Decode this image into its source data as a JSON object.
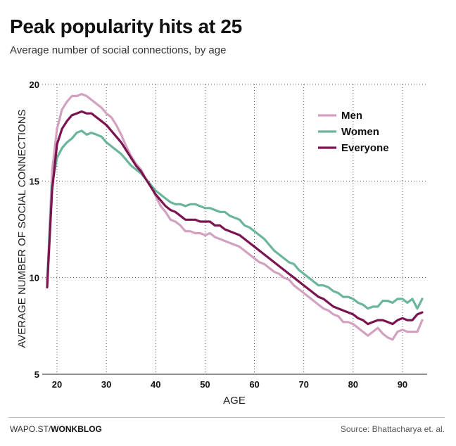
{
  "header": {
    "title": "Peak popularity hits at 25",
    "subtitle": "Average number of social connections, by age"
  },
  "footer": {
    "credit_prefix": "WAPO.ST/",
    "credit_brand": "WONKBLOG",
    "source": "Source: Bhattacharya et. al."
  },
  "chart_data": {
    "type": "line",
    "xlabel": "AGE",
    "ylabel": "AVERAGE NUMBER OF SOCIAL CONNECTIONS",
    "xlim": [
      17,
      95
    ],
    "ylim": [
      5,
      20
    ],
    "xticks": [
      20,
      30,
      40,
      50,
      60,
      70,
      80,
      90
    ],
    "yticks": [
      5,
      10,
      15,
      20
    ],
    "grid": "dotted",
    "legend": "top-right",
    "x": [
      18,
      19,
      20,
      21,
      22,
      23,
      24,
      25,
      26,
      27,
      28,
      29,
      30,
      31,
      32,
      33,
      34,
      35,
      36,
      37,
      38,
      39,
      40,
      41,
      42,
      43,
      44,
      45,
      46,
      47,
      48,
      49,
      50,
      51,
      52,
      53,
      54,
      55,
      56,
      57,
      58,
      59,
      60,
      61,
      62,
      63,
      64,
      65,
      66,
      67,
      68,
      69,
      70,
      71,
      72,
      73,
      74,
      75,
      76,
      77,
      78,
      79,
      80,
      81,
      82,
      83,
      84,
      85,
      86,
      87,
      88,
      89,
      90,
      91,
      92,
      93,
      94
    ],
    "series": [
      {
        "name": "Men",
        "color": "#d2a1c0",
        "values": [
          9.6,
          15.5,
          17.7,
          18.7,
          19.1,
          19.4,
          19.4,
          19.5,
          19.4,
          19.2,
          19.0,
          18.8,
          18.5,
          18.3,
          17.9,
          17.4,
          16.8,
          16.3,
          15.9,
          15.6,
          15.1,
          14.8,
          14.2,
          13.7,
          13.4,
          13.0,
          12.9,
          12.7,
          12.4,
          12.4,
          12.3,
          12.3,
          12.2,
          12.3,
          12.1,
          12.0,
          11.9,
          11.8,
          11.7,
          11.6,
          11.4,
          11.2,
          11.0,
          10.8,
          10.7,
          10.5,
          10.3,
          10.2,
          10.0,
          9.9,
          9.6,
          9.4,
          9.2,
          9.0,
          8.8,
          8.6,
          8.4,
          8.3,
          8.1,
          8.0,
          7.7,
          7.7,
          7.6,
          7.4,
          7.2,
          7.0,
          7.2,
          7.4,
          7.1,
          6.9,
          6.8,
          7.2,
          7.3,
          7.2,
          7.2,
          7.2,
          7.8
        ]
      },
      {
        "name": "Women",
        "color": "#6bb59a",
        "values": [
          9.8,
          14.8,
          16.2,
          16.7,
          17.0,
          17.2,
          17.5,
          17.6,
          17.4,
          17.5,
          17.4,
          17.3,
          17.0,
          16.8,
          16.6,
          16.4,
          16.1,
          15.8,
          15.6,
          15.4,
          15.1,
          14.8,
          14.5,
          14.3,
          14.1,
          13.9,
          13.8,
          13.8,
          13.7,
          13.8,
          13.8,
          13.7,
          13.6,
          13.6,
          13.5,
          13.4,
          13.4,
          13.2,
          13.1,
          13.0,
          12.7,
          12.6,
          12.4,
          12.2,
          12.0,
          11.7,
          11.4,
          11.2,
          11.0,
          10.8,
          10.7,
          10.4,
          10.2,
          10.0,
          9.8,
          9.6,
          9.6,
          9.5,
          9.3,
          9.2,
          9.0,
          9.0,
          8.9,
          8.7,
          8.6,
          8.4,
          8.5,
          8.5,
          8.8,
          8.8,
          8.7,
          8.9,
          8.9,
          8.7,
          8.9,
          8.4,
          8.9
        ]
      },
      {
        "name": "Everyone",
        "color": "#7b1350",
        "values": [
          9.5,
          14.5,
          16.9,
          17.7,
          18.1,
          18.4,
          18.5,
          18.6,
          18.5,
          18.5,
          18.3,
          18.1,
          17.9,
          17.6,
          17.3,
          17.0,
          16.6,
          16.2,
          15.8,
          15.5,
          15.1,
          14.7,
          14.3,
          14.0,
          13.7,
          13.5,
          13.4,
          13.2,
          13.0,
          13.0,
          13.0,
          12.9,
          12.9,
          12.9,
          12.7,
          12.7,
          12.5,
          12.4,
          12.3,
          12.2,
          12.0,
          11.8,
          11.6,
          11.4,
          11.2,
          11.0,
          10.8,
          10.6,
          10.4,
          10.2,
          10.0,
          9.8,
          9.6,
          9.4,
          9.2,
          9.0,
          8.9,
          8.7,
          8.5,
          8.4,
          8.3,
          8.2,
          8.1,
          7.9,
          7.8,
          7.6,
          7.7,
          7.8,
          7.8,
          7.7,
          7.6,
          7.8,
          7.9,
          7.8,
          7.8,
          8.1,
          8.2
        ]
      }
    ]
  }
}
